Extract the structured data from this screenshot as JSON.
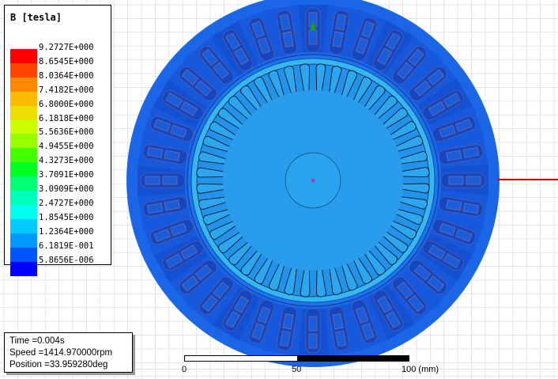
{
  "legend": {
    "title": "B [tesla]",
    "entries": [
      {
        "label": "9.2727E+000",
        "color": "#ff0000"
      },
      {
        "label": "8.6545E+000",
        "color": "#ff4400"
      },
      {
        "label": "8.0364E+000",
        "color": "#ff8800"
      },
      {
        "label": "7.4182E+000",
        "color": "#ffbb00"
      },
      {
        "label": "6.8000E+000",
        "color": "#eedd00"
      },
      {
        "label": "6.1818E+000",
        "color": "#ccff00"
      },
      {
        "label": "5.5636E+000",
        "color": "#99ff00"
      },
      {
        "label": "4.9455E+000",
        "color": "#44ff00"
      },
      {
        "label": "4.3273E+000",
        "color": "#00ff22"
      },
      {
        "label": "3.7091E+000",
        "color": "#00ff77"
      },
      {
        "label": "3.0909E+000",
        "color": "#00ffbb"
      },
      {
        "label": "2.4727E+000",
        "color": "#00ffee"
      },
      {
        "label": "1.8545E+000",
        "color": "#00ccff"
      },
      {
        "label": "1.2364E+000",
        "color": "#0099ff"
      },
      {
        "label": "6.1819E-001",
        "color": "#0055ff"
      },
      {
        "label": "5.8656E-006",
        "color": "#0000ff"
      }
    ]
  },
  "info": {
    "time": "Time    =0.004s",
    "speed": "Speed   =1414.970000rpm",
    "position": "Position =33.959280deg"
  },
  "scale": {
    "label_0": "0",
    "label_50": "50",
    "label_100": "100 (mm)"
  },
  "colors": {
    "stator_outer": "#1a66e6",
    "stator_dark": "#1448c8",
    "stator_light": "#2a86ee",
    "airgap_ring": "#33b4ee",
    "rotor": "#1f8fe8",
    "rotor_inner": "#2a9aea",
    "axis_marker": "#e00000"
  }
}
